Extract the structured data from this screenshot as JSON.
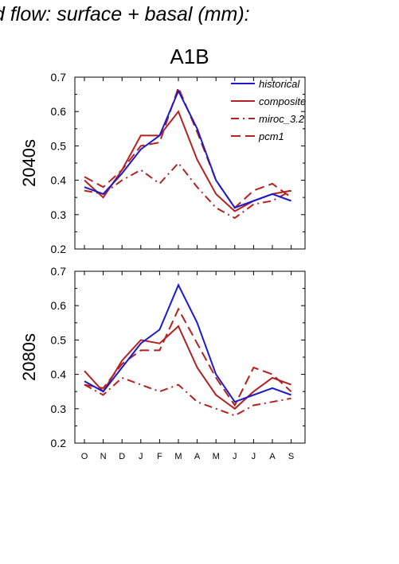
{
  "header": "d flow: surface + basal (mm):",
  "scenario": "A1B",
  "colors": {
    "historical": "#1a1acc",
    "future": "#b22222"
  },
  "chart_data": [
    {
      "type": "line",
      "row_label": "2040s",
      "categories": [
        "O",
        "N",
        "D",
        "J",
        "F",
        "M",
        "A",
        "M",
        "J",
        "J",
        "A",
        "S"
      ],
      "ylim": [
        0.2,
        0.7
      ],
      "yticks": [
        "0.2",
        "0.3",
        "0.4",
        "0.5",
        "0.6",
        "0.7"
      ],
      "series": [
        {
          "name": "historical",
          "dash": "solid",
          "color": "#1a1acc",
          "values": [
            0.38,
            0.36,
            0.42,
            0.49,
            0.53,
            0.66,
            0.55,
            0.4,
            0.32,
            0.34,
            0.36,
            0.34
          ]
        },
        {
          "name": "composite",
          "dash": "solid",
          "color": "#b22222",
          "values": [
            0.4,
            0.35,
            0.43,
            0.53,
            0.53,
            0.6,
            0.46,
            0.36,
            0.31,
            0.34,
            0.36,
            0.37
          ]
        },
        {
          "name": "miroc_3.2",
          "dash": "dashdot",
          "color": "#b22222",
          "values": [
            0.37,
            0.36,
            0.4,
            0.43,
            0.39,
            0.45,
            0.38,
            0.32,
            0.29,
            0.33,
            0.34,
            0.37
          ]
        },
        {
          "name": "pcm1",
          "dash": "dash",
          "color": "#b22222",
          "values": [
            0.41,
            0.38,
            0.43,
            0.5,
            0.51,
            0.67,
            0.54,
            0.4,
            0.32,
            0.37,
            0.39,
            0.35
          ]
        }
      ]
    },
    {
      "type": "line",
      "row_label": "2080s",
      "categories": [
        "O",
        "N",
        "D",
        "J",
        "F",
        "M",
        "A",
        "M",
        "J",
        "J",
        "A",
        "S"
      ],
      "ylim": [
        0.2,
        0.7
      ],
      "yticks": [
        "0.2",
        "0.3",
        "0.4",
        "0.5",
        "0.6",
        "0.7"
      ],
      "series": [
        {
          "name": "historical",
          "dash": "solid",
          "color": "#1a1acc",
          "values": [
            0.38,
            0.35,
            0.42,
            0.49,
            0.53,
            0.66,
            0.55,
            0.4,
            0.32,
            0.34,
            0.36,
            0.34
          ]
        },
        {
          "name": "composite",
          "dash": "solid",
          "color": "#b22222",
          "values": [
            0.41,
            0.35,
            0.44,
            0.5,
            0.49,
            0.54,
            0.42,
            0.34,
            0.3,
            0.35,
            0.39,
            0.37
          ]
        },
        {
          "name": "miroc_3.2",
          "dash": "dashdot",
          "color": "#b22222",
          "values": [
            0.37,
            0.34,
            0.39,
            0.37,
            0.35,
            0.37,
            0.32,
            0.3,
            0.28,
            0.31,
            0.32,
            0.33
          ]
        },
        {
          "name": "pcm1",
          "dash": "dash",
          "color": "#b22222",
          "values": [
            0.37,
            0.36,
            0.43,
            0.47,
            0.47,
            0.59,
            0.49,
            0.39,
            0.31,
            0.42,
            0.4,
            0.35
          ]
        }
      ]
    }
  ]
}
